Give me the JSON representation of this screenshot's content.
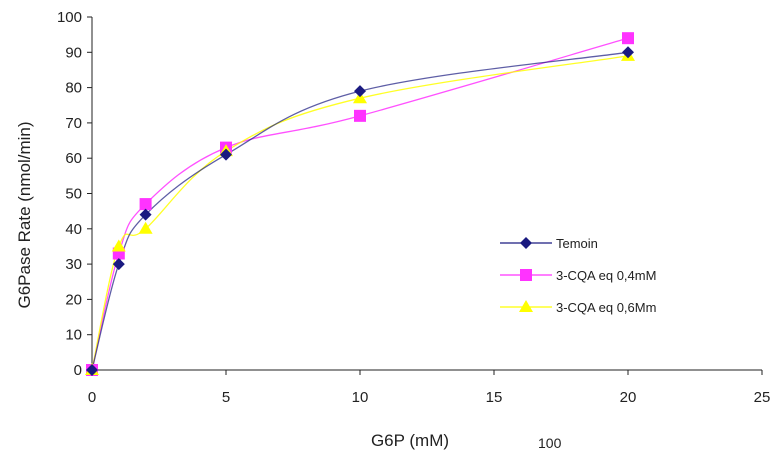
{
  "chart_data": {
    "type": "line",
    "xlabel": "G6P (mM)",
    "ylabel": "G6Pase Rate (nmol/min)",
    "xlim": [
      0,
      25
    ],
    "ylim": [
      0,
      100
    ],
    "xticks": [
      "0",
      "5",
      "10",
      "15",
      "20",
      "25"
    ],
    "yticks": [
      "0",
      "10",
      "20",
      "30",
      "40",
      "50",
      "60",
      "70",
      "80",
      "90",
      "100"
    ],
    "grid": false,
    "legend_position": "right",
    "series": [
      {
        "name": "Temoin",
        "color": "#1a1a80",
        "marker": "diamond",
        "x": [
          0,
          1,
          2,
          5,
          10,
          20
        ],
        "y": [
          0,
          30,
          44,
          61,
          79,
          90
        ]
      },
      {
        "name": "3-CQA eq 0,4mM",
        "color": "#ff33ff",
        "marker": "square",
        "x": [
          0,
          1,
          2,
          5,
          10,
          20
        ],
        "y": [
          0,
          33,
          47,
          63,
          72,
          94
        ]
      },
      {
        "name": "3-CQA eq 0,6Mm",
        "color": "#ffff00",
        "marker": "triangle",
        "x": [
          0,
          1,
          2,
          5,
          10,
          20
        ],
        "y": [
          0,
          35,
          40,
          62,
          77,
          89
        ]
      }
    ],
    "footer_text": "100"
  }
}
